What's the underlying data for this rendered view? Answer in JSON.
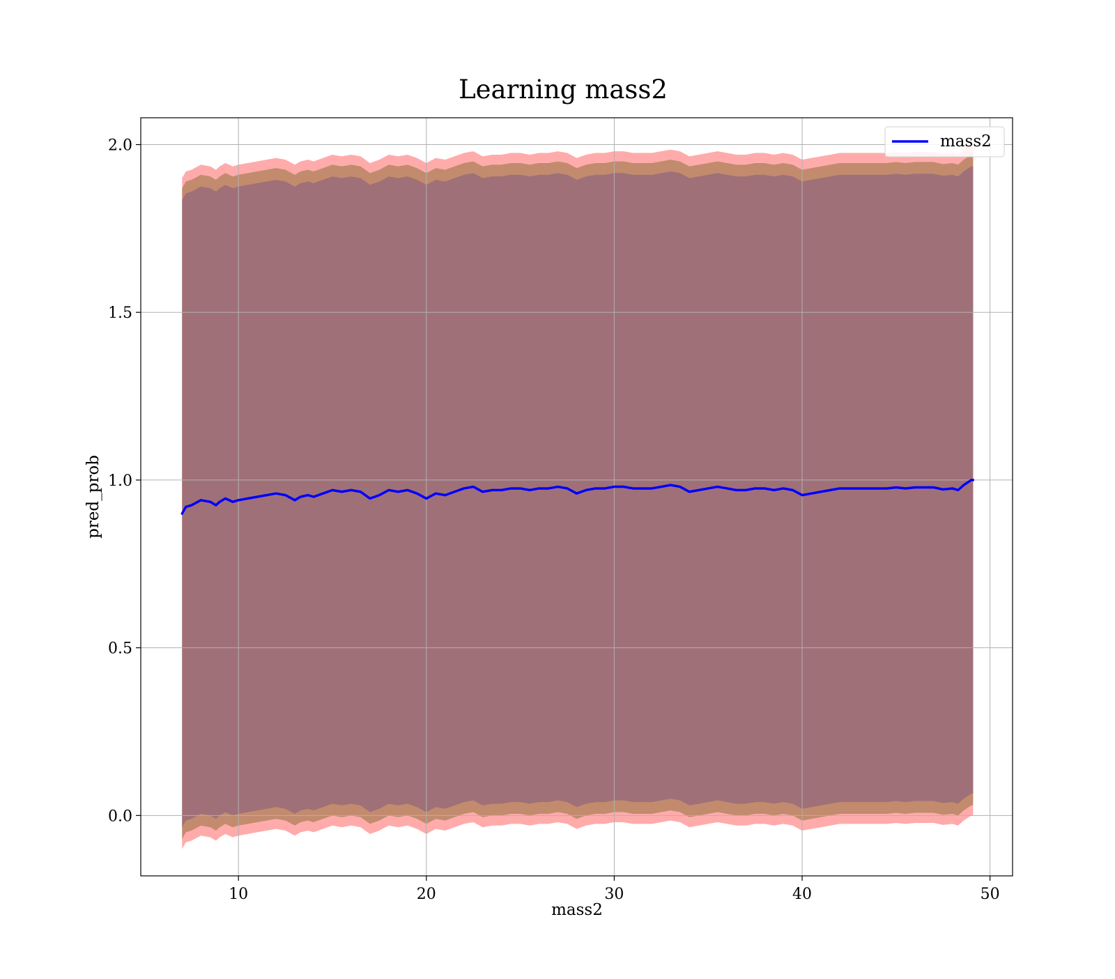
{
  "chart_data": {
    "type": "line",
    "title": "Learning mass2",
    "xlabel": "mass2",
    "ylabel": "pred_prob",
    "xlim": [
      4.8,
      51.2
    ],
    "ylim": [
      -0.18,
      2.08
    ],
    "xticks": [
      10,
      20,
      30,
      40,
      50
    ],
    "yticks": [
      0.0,
      0.5,
      1.0,
      1.5,
      2.0
    ],
    "xtick_labels": [
      "10",
      "20",
      "30",
      "40",
      "50"
    ],
    "ytick_labels": [
      "0.0",
      "0.5",
      "1.0",
      "1.5",
      "2.0"
    ],
    "grid": true,
    "legend_position": "top-right",
    "series": [
      {
        "name": "mass2",
        "color": "#0000ff",
        "x": [
          7.0,
          7.2,
          7.5,
          8.0,
          8.5,
          8.8,
          9.0,
          9.3,
          9.7,
          10.0,
          10.5,
          11.0,
          11.5,
          12.0,
          12.5,
          13.0,
          13.3,
          13.7,
          14.0,
          14.5,
          15.0,
          15.5,
          16.0,
          16.5,
          17.0,
          17.5,
          18.0,
          18.5,
          19.0,
          19.5,
          20.0,
          20.5,
          21.0,
          21.5,
          22.0,
          22.5,
          23.0,
          23.5,
          24.0,
          24.5,
          25.0,
          25.5,
          26.0,
          26.5,
          27.0,
          27.5,
          28.0,
          28.5,
          29.0,
          29.5,
          30.0,
          30.5,
          31.0,
          31.5,
          32.0,
          32.5,
          33.0,
          33.5,
          34.0,
          34.5,
          35.0,
          35.5,
          36.0,
          36.5,
          37.0,
          37.5,
          38.0,
          38.5,
          39.0,
          39.5,
          40.0,
          40.5,
          41.0,
          41.5,
          42.0,
          42.5,
          43.0,
          43.5,
          44.0,
          44.5,
          45.0,
          45.5,
          46.0,
          46.5,
          47.0,
          47.5,
          48.0,
          48.3,
          48.6,
          49.0,
          49.1
        ],
        "values": [
          0.9,
          0.92,
          0.925,
          0.94,
          0.935,
          0.925,
          0.935,
          0.945,
          0.935,
          0.94,
          0.945,
          0.95,
          0.955,
          0.96,
          0.955,
          0.94,
          0.95,
          0.955,
          0.95,
          0.96,
          0.97,
          0.965,
          0.97,
          0.965,
          0.945,
          0.955,
          0.97,
          0.965,
          0.97,
          0.96,
          0.945,
          0.96,
          0.955,
          0.965,
          0.975,
          0.98,
          0.965,
          0.97,
          0.97,
          0.975,
          0.975,
          0.97,
          0.975,
          0.975,
          0.98,
          0.975,
          0.96,
          0.97,
          0.975,
          0.975,
          0.98,
          0.98,
          0.975,
          0.975,
          0.975,
          0.98,
          0.985,
          0.98,
          0.965,
          0.97,
          0.975,
          0.98,
          0.975,
          0.97,
          0.97,
          0.975,
          0.975,
          0.97,
          0.975,
          0.97,
          0.955,
          0.96,
          0.965,
          0.97,
          0.975,
          0.975,
          0.975,
          0.975,
          0.975,
          0.975,
          0.978,
          0.975,
          0.978,
          0.978,
          0.978,
          0.972,
          0.975,
          0.97,
          0.985,
          1.0,
          1.0
        ]
      }
    ],
    "band_colors": {
      "outer": "#ff9c9c",
      "middle": "#c28b6e",
      "inner": "#a07078"
    }
  }
}
